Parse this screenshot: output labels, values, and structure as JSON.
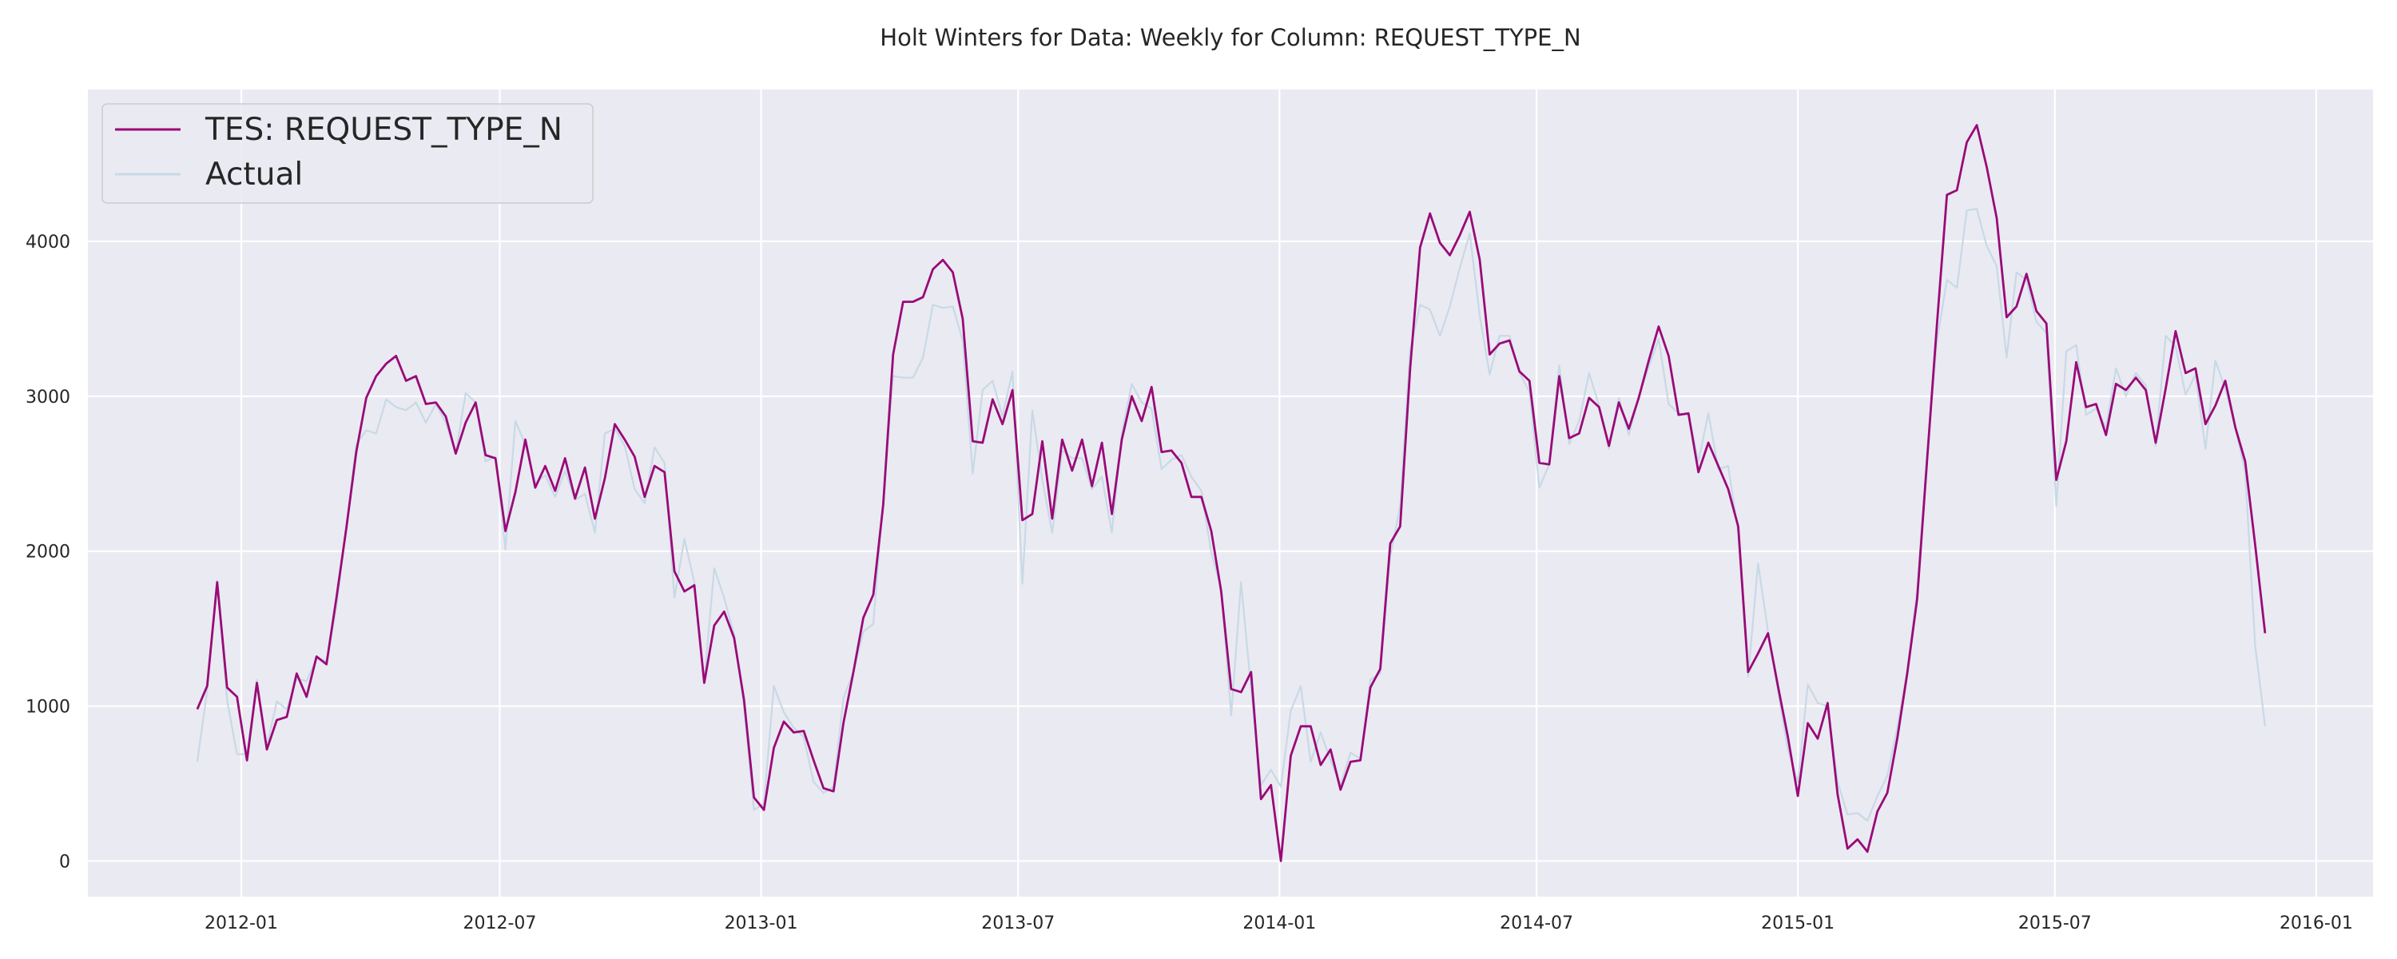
{
  "chart_data": {
    "type": "line",
    "title": "Holt Winters for Data: Weekly for Column: REQUEST_TYPE_N",
    "xlabel": "",
    "ylabel": "",
    "x_range": [
      "2011-09-15",
      "2016-02-10"
    ],
    "ylim": [
      -230,
      4980
    ],
    "x_ticks": [
      {
        "date": "2012-01-01",
        "label": "2012-01"
      },
      {
        "date": "2012-07-01",
        "label": "2012-07"
      },
      {
        "date": "2013-01-01",
        "label": "2013-01"
      },
      {
        "date": "2013-07-01",
        "label": "2013-07"
      },
      {
        "date": "2014-01-01",
        "label": "2014-01"
      },
      {
        "date": "2014-07-01",
        "label": "2014-07"
      },
      {
        "date": "2015-01-01",
        "label": "2015-01"
      },
      {
        "date": "2015-07-01",
        "label": "2015-07"
      },
      {
        "date": "2016-01-01",
        "label": "2016-01"
      }
    ],
    "y_ticks": [
      0,
      1000,
      2000,
      3000,
      4000
    ],
    "grid": true,
    "legend_position": "top-left",
    "start_date": "2011-12-01",
    "step_days": 7,
    "series": [
      {
        "name": "TES: REQUEST_TYPE_N",
        "color": "#990a78",
        "values": [
          980,
          1130,
          1800,
          1120,
          1060,
          650,
          1150,
          720,
          910,
          930,
          1210,
          1060,
          1320,
          1270,
          1700,
          2150,
          2640,
          2990,
          3130,
          3210,
          3260,
          3100,
          3130,
          2950,
          2960,
          2870,
          2630,
          2830,
          2960,
          2620,
          2600,
          2130,
          2380,
          2720,
          2410,
          2550,
          2390,
          2600,
          2340,
          2540,
          2210,
          2470,
          2820,
          2720,
          2610,
          2350,
          2550,
          2510,
          1870,
          1740,
          1780,
          1150,
          1520,
          1610,
          1440,
          1040,
          410,
          330,
          730,
          900,
          830,
          840,
          650,
          470,
          450,
          890,
          1220,
          1570,
          1720,
          2300,
          3270,
          3610,
          3610,
          3640,
          3820,
          3880,
          3800,
          3500,
          2710,
          2700,
          2980,
          2820,
          3040,
          2200,
          2240,
          2710,
          2210,
          2720,
          2520,
          2720,
          2420,
          2700,
          2240,
          2720,
          3000,
          2840,
          3060,
          2640,
          2650,
          2570,
          2350,
          2350,
          2130,
          1740,
          1110,
          1090,
          1220,
          400,
          490,
          0,
          680,
          870,
          870,
          620,
          720,
          460,
          640,
          650,
          1120,
          1240,
          2050,
          2160,
          3180,
          3960,
          4180,
          3990,
          3910,
          4040,
          4190,
          3880,
          3270,
          3340,
          3360,
          3160,
          3100,
          2570,
          2560,
          3130,
          2730,
          2760,
          2990,
          2930,
          2680,
          2960,
          2790,
          2990,
          3230,
          3450,
          3260,
          2880,
          2890,
          2510,
          2700,
          2550,
          2400,
          2160,
          1220,
          1340,
          1470,
          1130,
          800,
          420,
          890,
          790,
          1020,
          430,
          80,
          140,
          60,
          320,
          440,
          790,
          1210,
          1690,
          2590,
          3470,
          4300,
          4330,
          4640,
          4750,
          4480,
          4150,
          3510,
          3580,
          3790,
          3550,
          3470,
          2460,
          2710,
          3220,
          2930,
          2950,
          2750,
          3080,
          3040,
          3120,
          3040,
          2700,
          3050,
          3420,
          3150,
          3180,
          2820,
          2940,
          3100,
          2800,
          2580,
          2040,
          1470
        ]
      },
      {
        "name": "Actual",
        "color": "#c8d9e6",
        "values": [
          640,
          1100,
          1810,
          1040,
          690,
          690,
          1170,
          740,
          1030,
          980,
          1180,
          1160,
          1310,
          1290,
          1640,
          2160,
          2690,
          2780,
          2760,
          2980,
          2930,
          2910,
          2960,
          2830,
          2950,
          2830,
          2630,
          3020,
          2960,
          2580,
          2610,
          2010,
          2840,
          2690,
          2440,
          2490,
          2350,
          2520,
          2330,
          2370,
          2120,
          2760,
          2790,
          2680,
          2400,
          2310,
          2670,
          2570,
          1700,
          2080,
          1800,
          1160,
          1890,
          1700,
          1460,
          1000,
          330,
          370,
          1130,
          960,
          860,
          800,
          510,
          440,
          480,
          1050,
          1220,
          1480,
          1530,
          2340,
          3130,
          3120,
          3120,
          3250,
          3590,
          3570,
          3580,
          3360,
          2500,
          3040,
          3100,
          2870,
          3160,
          1790,
          2910,
          2460,
          2120,
          2650,
          2600,
          2600,
          2400,
          2480,
          2120,
          2760,
          3080,
          2960,
          2920,
          2530,
          2590,
          2620,
          2480,
          2390,
          1990,
          1760,
          940,
          1800,
          1110,
          490,
          590,
          480,
          970,
          1130,
          640,
          830,
          650,
          490,
          700,
          660,
          1170,
          1210,
          1970,
          2290,
          3300,
          3590,
          3560,
          3390,
          3580,
          3830,
          4050,
          3520,
          3140,
          3390,
          3390,
          3150,
          3030,
          2410,
          2560,
          3200,
          2690,
          2840,
          3150,
          2940,
          2660,
          2990,
          2750,
          3000,
          3190,
          3370,
          2950,
          2890,
          2880,
          2580,
          2890,
          2530,
          2550,
          2110,
          1190,
          1920,
          1480,
          1100,
          720,
          510,
          1140,
          1020,
          1000,
          510,
          300,
          310,
          260,
          420,
          550,
          860,
          1230,
          1750,
          2630,
          3360,
          3750,
          3700,
          4200,
          4210,
          3970,
          3840,
          3250,
          3800,
          3750,
          3480,
          3410,
          2290,
          3290,
          3330,
          2880,
          2920,
          2800,
          3180,
          3000,
          3150,
          3070,
          2680,
          3390,
          3320,
          3010,
          3140,
          2660,
          3230,
          3050,
          2800,
          2510,
          1390,
          870
        ]
      }
    ]
  }
}
